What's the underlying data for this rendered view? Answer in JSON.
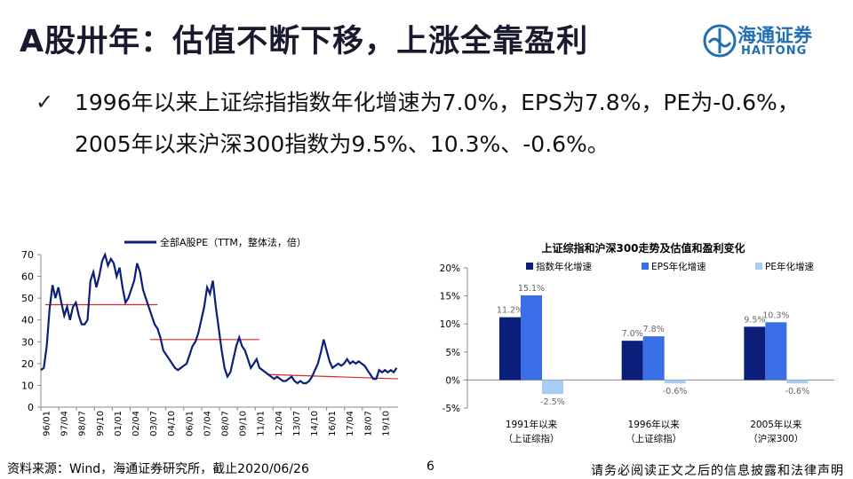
{
  "header": {
    "title": "A股卅年：估值不断下移，上涨全靠盈利",
    "logo_cn": "海通证券",
    "logo_en": "HAITONG"
  },
  "bullet": {
    "text": "1996年以来上证综指指数年化增速为7.0%，EPS为7.8%，PE为-0.6%，2005年以来沪深300指数为9.5%、10.3%、-0.6%。"
  },
  "footer": {
    "source": "资料来源：Wind，海通证券研究所，截止2020/06/26",
    "page": "6",
    "disclaimer": "请务必阅读正文之后的信息披露和法律声明"
  },
  "colors": {
    "navy": "#0b1f7a",
    "blue": "#3b6fe8",
    "lightblue": "#a9cdf2",
    "red": "#d62728"
  },
  "chart_data": [
    {
      "type": "line",
      "legend": "全部A股PE（TTM，整体法，倍）",
      "ylim": [
        0,
        70
      ],
      "yticks": [
        "0",
        "10",
        "20",
        "30",
        "40",
        "50",
        "60",
        "70"
      ],
      "xticks": [
        "96/01",
        "97/04",
        "98/07",
        "99/10",
        "01/01",
        "02/04",
        "03/07",
        "04/10",
        "06/01",
        "07/04",
        "08/07",
        "09/10",
        "11/01",
        "12/04",
        "13/07",
        "14/10",
        "16/01",
        "17/04",
        "18/07",
        "19/10"
      ],
      "x_range": [
        1996.0,
        2020.5
      ],
      "series": [
        {
          "name": "全部A股PE",
          "points": [
            [
              1996.0,
              17
            ],
            [
              1996.2,
              18
            ],
            [
              1996.4,
              28
            ],
            [
              1996.6,
              45
            ],
            [
              1996.8,
              56
            ],
            [
              1997.0,
              50
            ],
            [
              1997.2,
              55
            ],
            [
              1997.4,
              48
            ],
            [
              1997.6,
              42
            ],
            [
              1997.8,
              46
            ],
            [
              1998.0,
              40
            ],
            [
              1998.2,
              46
            ],
            [
              1998.4,
              48
            ],
            [
              1998.6,
              42
            ],
            [
              1998.8,
              38
            ],
            [
              1999.0,
              38
            ],
            [
              1999.2,
              40
            ],
            [
              1999.4,
              58
            ],
            [
              1999.6,
              62
            ],
            [
              1999.8,
              55
            ],
            [
              2000.0,
              60
            ],
            [
              2000.2,
              67
            ],
            [
              2000.4,
              70
            ],
            [
              2000.6,
              65
            ],
            [
              2000.8,
              68
            ],
            [
              2001.0,
              66
            ],
            [
              2001.2,
              60
            ],
            [
              2001.4,
              64
            ],
            [
              2001.6,
              55
            ],
            [
              2001.8,
              48
            ],
            [
              2002.0,
              50
            ],
            [
              2002.2,
              54
            ],
            [
              2002.4,
              58
            ],
            [
              2002.6,
              66
            ],
            [
              2002.8,
              62
            ],
            [
              2003.0,
              54
            ],
            [
              2003.2,
              50
            ],
            [
              2003.4,
              46
            ],
            [
              2003.6,
              42
            ],
            [
              2003.8,
              38
            ],
            [
              2004.0,
              36
            ],
            [
              2004.2,
              32
            ],
            [
              2004.4,
              26
            ],
            [
              2004.6,
              24
            ],
            [
              2004.8,
              22
            ],
            [
              2005.0,
              20
            ],
            [
              2005.2,
              18
            ],
            [
              2005.4,
              17
            ],
            [
              2005.6,
              18
            ],
            [
              2005.8,
              19
            ],
            [
              2006.0,
              20
            ],
            [
              2006.2,
              24
            ],
            [
              2006.4,
              28
            ],
            [
              2006.6,
              30
            ],
            [
              2006.8,
              34
            ],
            [
              2007.0,
              40
            ],
            [
              2007.2,
              46
            ],
            [
              2007.4,
              55
            ],
            [
              2007.6,
              52
            ],
            [
              2007.8,
              58
            ],
            [
              2008.0,
              46
            ],
            [
              2008.2,
              36
            ],
            [
              2008.4,
              26
            ],
            [
              2008.6,
              18
            ],
            [
              2008.8,
              14
            ],
            [
              2009.0,
              16
            ],
            [
              2009.2,
              22
            ],
            [
              2009.4,
              28
            ],
            [
              2009.6,
              32
            ],
            [
              2009.8,
              28
            ],
            [
              2010.0,
              26
            ],
            [
              2010.2,
              22
            ],
            [
              2010.4,
              18
            ],
            [
              2010.6,
              20
            ],
            [
              2010.8,
              22
            ],
            [
              2011.0,
              18
            ],
            [
              2011.2,
              17
            ],
            [
              2011.4,
              16
            ],
            [
              2011.6,
              15
            ],
            [
              2011.8,
              14
            ],
            [
              2012.0,
              13
            ],
            [
              2012.2,
              14
            ],
            [
              2012.4,
              13
            ],
            [
              2012.6,
              12
            ],
            [
              2012.8,
              12
            ],
            [
              2013.0,
              13
            ],
            [
              2013.2,
              14
            ],
            [
              2013.4,
              12
            ],
            [
              2013.6,
              11
            ],
            [
              2013.8,
              12
            ],
            [
              2014.0,
              11
            ],
            [
              2014.2,
              11
            ],
            [
              2014.4,
              12
            ],
            [
              2014.6,
              14
            ],
            [
              2014.8,
              17
            ],
            [
              2015.0,
              20
            ],
            [
              2015.2,
              25
            ],
            [
              2015.4,
              31
            ],
            [
              2015.6,
              26
            ],
            [
              2015.8,
              21
            ],
            [
              2016.0,
              18
            ],
            [
              2016.2,
              19
            ],
            [
              2016.4,
              20
            ],
            [
              2016.6,
              19
            ],
            [
              2016.8,
              20
            ],
            [
              2017.0,
              22
            ],
            [
              2017.2,
              20
            ],
            [
              2017.4,
              21
            ],
            [
              2017.6,
              20
            ],
            [
              2017.8,
              21
            ],
            [
              2018.0,
              20
            ],
            [
              2018.2,
              19
            ],
            [
              2018.4,
              17
            ],
            [
              2018.6,
              15
            ],
            [
              2018.8,
              13
            ],
            [
              2019.0,
              13
            ],
            [
              2019.2,
              17
            ],
            [
              2019.4,
              16
            ],
            [
              2019.6,
              17
            ],
            [
              2019.8,
              16
            ],
            [
              2020.0,
              17
            ],
            [
              2020.2,
              16
            ],
            [
              2020.4,
              18
            ]
          ]
        }
      ],
      "reference_lines": [
        {
          "x": [
            1996.3,
            2004.0
          ],
          "y": [
            47,
            47
          ]
        },
        {
          "x": [
            2003.5,
            2011.0
          ],
          "y": [
            31,
            31
          ]
        },
        {
          "x": [
            2011.5,
            2020.5
          ],
          "y": [
            15,
            13
          ]
        }
      ]
    },
    {
      "type": "bar",
      "title": "上证综指和沪深300走势及估值和盈利变化",
      "ylim": [
        -5,
        20
      ],
      "yticks": [
        "20%",
        "15%",
        "10%",
        "5%",
        "0%",
        "-5%"
      ],
      "categories": [
        "1991年以来（上证综指）",
        "1996年以来（上证综指）",
        "2005年以来（沪深300）"
      ],
      "category_lines": [
        [
          "1991年以来",
          "（上证综指）"
        ],
        [
          "1996年以来",
          "（上证综指）"
        ],
        [
          "2005年以来",
          "（沪深300）"
        ]
      ],
      "series": [
        {
          "name": "指数年化增速",
          "values": [
            11.2,
            7.0,
            9.5
          ],
          "labels": [
            "11.2%",
            "7.0%",
            "9.5%"
          ]
        },
        {
          "name": "EPS年化增速",
          "values": [
            15.1,
            7.8,
            10.3
          ],
          "labels": [
            "15.1%",
            "7.8%",
            "10.3%"
          ]
        },
        {
          "name": "PE年化增速",
          "values": [
            -2.5,
            -0.6,
            -0.6
          ],
          "labels": [
            "-2.5%",
            "-0.6%",
            "-0.6%"
          ]
        }
      ]
    }
  ]
}
